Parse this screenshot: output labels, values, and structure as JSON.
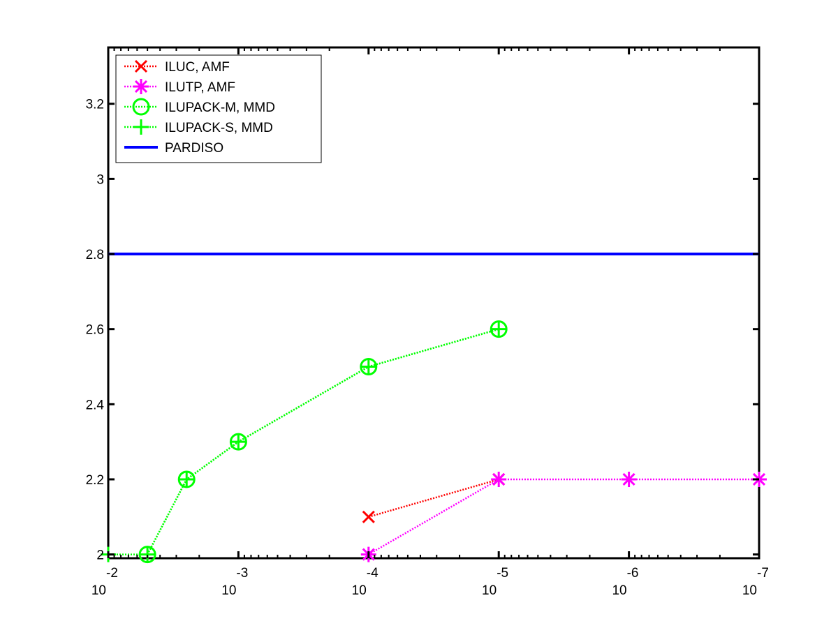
{
  "chart_data": {
    "type": "line",
    "title": "",
    "xlabel": "",
    "ylabel": "",
    "x_scale": "log",
    "x_direction": "reversed",
    "xlim": [
      0.01,
      1e-07
    ],
    "ylim": [
      1.99,
      3.35
    ],
    "x_ticks": [
      {
        "value": 0.01,
        "base": "10",
        "exponent": "-2"
      },
      {
        "value": 0.001,
        "base": "10",
        "exponent": "-3"
      },
      {
        "value": 0.0001,
        "base": "10",
        "exponent": "-4"
      },
      {
        "value": 1e-05,
        "base": "10",
        "exponent": "-5"
      },
      {
        "value": 1e-06,
        "base": "10",
        "exponent": "-6"
      },
      {
        "value": 1e-07,
        "base": "10",
        "exponent": "-7"
      }
    ],
    "y_ticks": [
      {
        "value": 2,
        "label": "2"
      },
      {
        "value": 2.2,
        "label": "2.2"
      },
      {
        "value": 2.4,
        "label": "2.4"
      },
      {
        "value": 2.6,
        "label": "2.6"
      },
      {
        "value": 2.8,
        "label": "2.8"
      },
      {
        "value": 3,
        "label": "3"
      },
      {
        "value": 3.2,
        "label": "3.2"
      }
    ],
    "grid": false,
    "legend_position": "top-left",
    "series": [
      {
        "name": "ILUC, AMF",
        "color": "#ff0000",
        "marker": "x",
        "line_style": "dotted",
        "x": [
          0.0001,
          1e-05
        ],
        "y": [
          2.1,
          2.2
        ]
      },
      {
        "name": "ILUTP, AMF",
        "color": "#ff00ff",
        "marker": "asterisk",
        "line_style": "dotted",
        "x": [
          0.0001,
          1e-05,
          1e-06,
          1e-07
        ],
        "y": [
          2.0,
          2.2,
          2.2,
          2.2
        ]
      },
      {
        "name": "ILUPACK-M, MMD",
        "color": "#00ff00",
        "marker": "circle",
        "line_style": "dotted",
        "x": [
          0.005,
          0.0025,
          0.001,
          0.0001,
          1e-05
        ],
        "y": [
          2.0,
          2.2,
          2.3,
          2.5,
          2.6
        ]
      },
      {
        "name": "ILUPACK-S, MMD",
        "color": "#00ff00",
        "marker": "plus",
        "line_style": "dotted",
        "x": [
          0.01,
          0.005,
          0.0025,
          0.001,
          0.0001,
          1e-05
        ],
        "y": [
          2.0,
          2.0,
          2.2,
          2.3,
          2.5,
          2.6
        ]
      },
      {
        "name": "PARDISO",
        "color": "#0000ff",
        "marker": "none",
        "line_style": "solid",
        "x": [
          0.01,
          1e-07
        ],
        "y": [
          2.8,
          2.8
        ]
      }
    ]
  }
}
